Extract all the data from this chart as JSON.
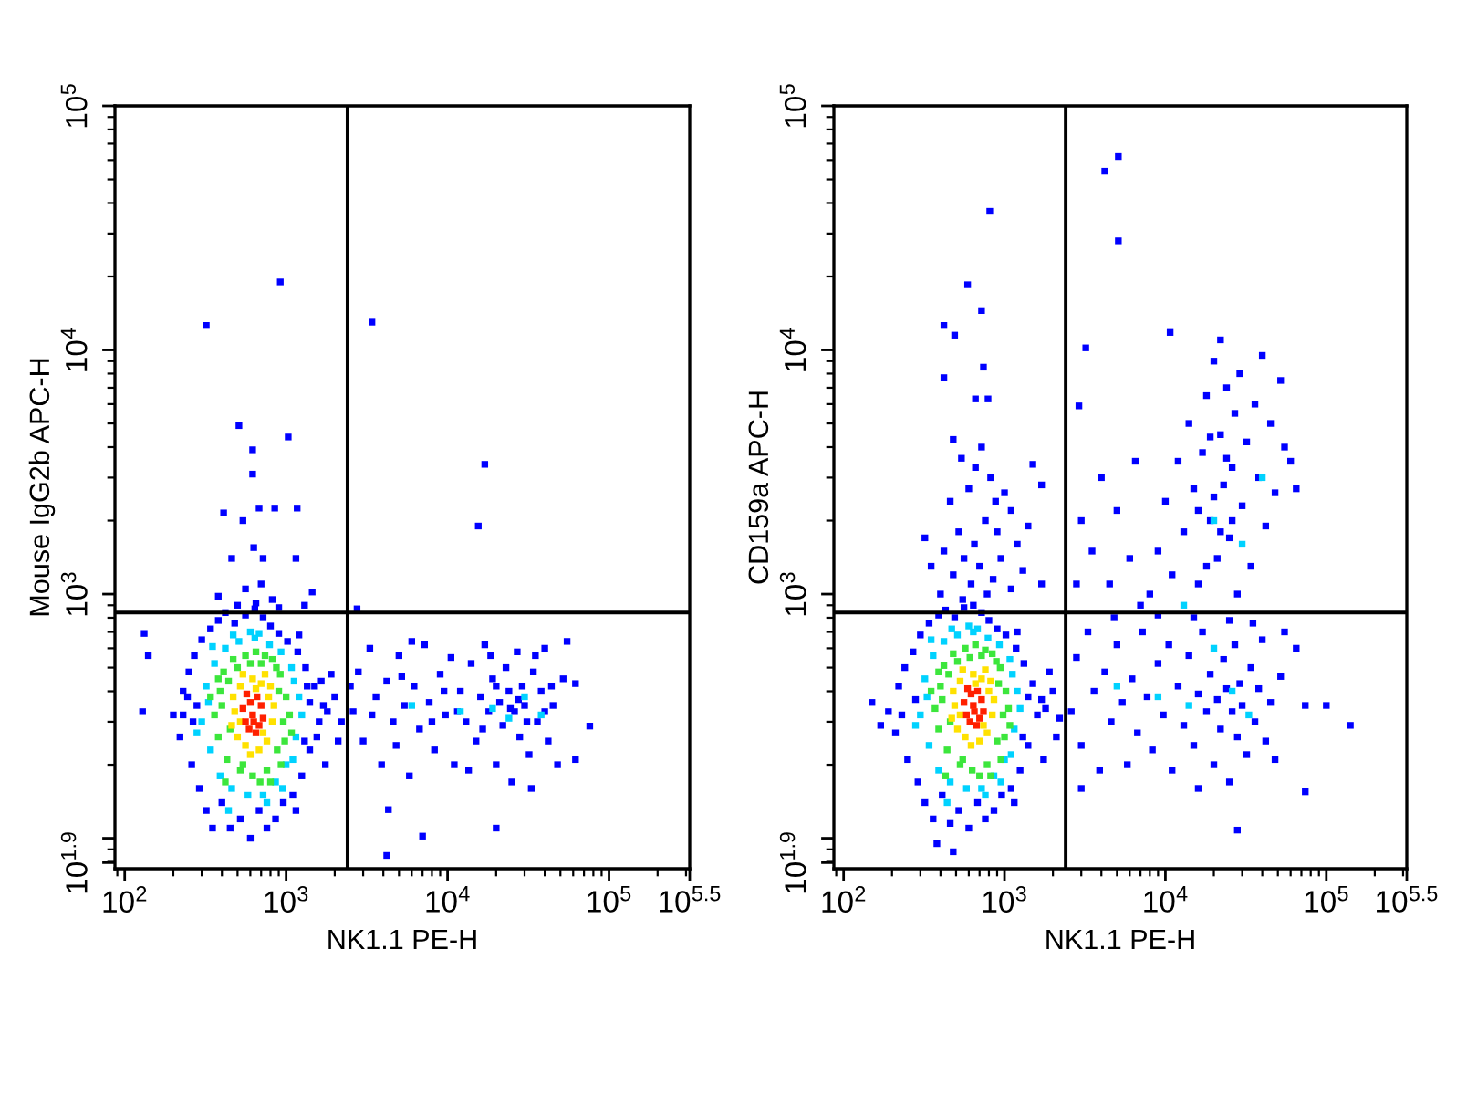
{
  "chart_data": [
    {
      "type": "scatter",
      "xlabel": "NK1.1 PE-H",
      "ylabel": "Mouse IgG2b APC-H",
      "log": "xy",
      "marker": "square",
      "xlim": [
        87,
        316228
      ],
      "ylim": [
        75,
        100000
      ],
      "xticks": [
        {
          "value": 100,
          "label": "10$^{2}$"
        },
        {
          "value": 1000,
          "label": "10$^{3}$"
        },
        {
          "value": 10000,
          "label": "10$^{4}$"
        },
        {
          "value": 100000,
          "label": "10$^{5}$"
        },
        {
          "value": 316228,
          "label": "10$^{5.5}$"
        }
      ],
      "yticks": [
        {
          "value": 79.4,
          "label": "10$^{1.9}$"
        },
        {
          "value": 100,
          "label": null
        },
        {
          "value": 1000,
          "label": "10$^{3}$"
        },
        {
          "value": 10000,
          "label": "10$^{4}$"
        },
        {
          "value": 100000,
          "label": "10$^{5}$"
        }
      ],
      "ref_lines": [
        {
          "axis": "x",
          "value": 2400,
          "color": "#000000"
        },
        {
          "axis": "y",
          "value": 840,
          "color": "#000000"
        }
      ],
      "series": [
        {
          "color": "#0000ff",
          "x": [
            200,
            220,
            230,
            250,
            260,
            270,
            280,
            290,
            300,
            320,
            340,
            350,
            380,
            400,
            420,
            450,
            480,
            520,
            560,
            600,
            640,
            680,
            720,
            760,
            800,
            860,
            900,
            960,
            1020,
            1100,
            1180,
            1250,
            1320,
            1400,
            1500,
            1600,
            1700,
            1400,
            1300,
            1200,
            1150,
            230,
            245,
            265,
            1350,
            1550,
            1650,
            1800,
            2000,
            2200,
            1900,
            2100,
            1750,
            129,
            132,
            140,
            920,
            320,
            3400,
            17000,
            15500,
            510,
            1030,
            620,
            620,
            680,
            850,
            1170,
            410,
            540,
            630,
            460,
            720,
            1150,
            1450,
            560,
            700,
            820,
            380,
            2750,
            500,
            650,
            900,
            1300,
            4300,
            7000,
            4200,
            20000,
            76000,
            62000,
            62000
          ],
          "values": [
            320,
            260,
            400,
            480,
            200,
            560,
            350,
            160,
            650,
            130,
            720,
            110,
            780,
            140,
            840,
            110,
            760,
            120,
            820,
            100,
            870,
            130,
            800,
            110,
            740,
            120,
            690,
            140,
            640,
            150,
            580,
            180,
            500,
            230,
            420,
            300,
            350,
            360,
            250,
            680,
            130,
            320,
            380,
            300,
            420,
            260,
            440,
            330,
            380,
            300,
            470,
            250,
            200,
            330,
            690,
            560,
            19000,
            12600,
            13000,
            3400,
            1900,
            4900,
            4400,
            3900,
            3100,
            2250,
            2250,
            2250,
            2150,
            2000,
            1550,
            1400,
            1400,
            1400,
            1020,
            1050,
            1100,
            950,
            980,
            870,
            900,
            920,
            880,
            900,
            131,
            102,
            85,
            110,
            288,
            430,
            210
          ]
        },
        {
          "color": "#0000ff",
          "x": [
            2600,
            2800,
            3000,
            3300,
            3600,
            3900,
            4200,
            4600,
            5000,
            5400,
            5800,
            6200,
            6700,
            7200,
            7700,
            8300,
            9000,
            9700,
            10500,
            11000,
            12000,
            13000,
            14000,
            15000,
            16000,
            17000,
            18000,
            19000,
            20000,
            21000,
            22000,
            23000,
            24000,
            25000,
            26000,
            27000,
            28000,
            29000,
            30000,
            32000,
            34000,
            36000,
            38000,
            40000,
            42000,
            45000,
            48000,
            52000,
            55000,
            3400,
            4800,
            6000,
            8000,
            11500,
            16500,
            20000,
            24500,
            31000,
            35000,
            44000,
            2500,
            5200,
            9500,
            13500,
            18500,
            27500,
            33000,
            40000
          ],
          "values": [
            330,
            480,
            250,
            600,
            380,
            200,
            440,
            300,
            560,
            350,
            180,
            420,
            280,
            620,
            360,
            230,
            470,
            320,
            550,
            200,
            400,
            300,
            520,
            250,
            380,
            620,
            330,
            450,
            200,
            360,
            290,
            500,
            400,
            170,
            330,
            580,
            260,
            420,
            350,
            220,
            480,
            300,
            400,
            600,
            250,
            350,
            200,
            450,
            640,
            320,
            240,
            640,
            300,
            330,
            280,
            420,
            340,
            300,
            560,
            420,
            420,
            460,
            400,
            190,
            560,
            370,
            160,
            330
          ]
        },
        {
          "color": "#00d2ff",
          "x": [
            300,
            320,
            340,
            360,
            390,
            420,
            460,
            510,
            580,
            640,
            720,
            790,
            860,
            930,
            1000,
            1080,
            1150,
            1200,
            1250,
            1120,
            330,
            350,
            440,
            600,
            760,
            950,
            1100,
            680,
            470,
            280,
            6000,
            12000,
            19000,
            24000,
            30000,
            38000
          ],
          "values": [
            300,
            420,
            230,
            520,
            180,
            600,
            160,
            640,
            150,
            660,
            150,
            620,
            170,
            580,
            200,
            500,
            260,
            380,
            320,
            440,
            360,
            610,
            130,
            700,
            140,
            160,
            210,
            690,
            680,
            270,
            350,
            330,
            340,
            310,
            380,
            320
          ]
        },
        {
          "color": "#3ce63c",
          "x": [
            360,
            380,
            390,
            410,
            430,
            470,
            520,
            560,
            620,
            650,
            700,
            760,
            820,
            880,
            920,
            960,
            1000,
            1050,
            900,
            400,
            440,
            450,
            980,
            600,
            540,
            740,
            870,
            930,
            380,
            420,
            1080,
            690,
            500,
            340,
            800
          ],
          "values": [
            320,
            260,
            400,
            480,
            210,
            540,
            190,
            560,
            180,
            580,
            520,
            190,
            540,
            230,
            470,
            300,
            380,
            320,
            400,
            350,
            440,
            280,
            250,
            520,
            200,
            560,
            500,
            200,
            450,
            170,
            270,
            170,
            500,
            380,
            170
          ]
        },
        {
          "color": "#ffe100",
          "x": [
            480,
            500,
            520,
            560,
            620,
            700,
            780,
            820,
            760,
            680,
            600,
            470,
            840,
            740,
            540,
            460,
            800,
            650,
            520,
            720
          ],
          "values": [
            330,
            260,
            420,
            240,
            450,
            430,
            380,
            300,
            250,
            230,
            220,
            380,
            350,
            470,
            470,
            290,
            420,
            410,
            300,
            270
          ]
        },
        {
          "color": "#ff2000",
          "x": [
            560,
            620,
            680,
            600,
            700,
            650,
            540,
            720,
            590,
            660,
            630,
            570
          ],
          "values": [
            300,
            320,
            290,
            360,
            350,
            270,
            340,
            310,
            280,
            380,
            300,
            390
          ]
        }
      ]
    },
    {
      "type": "scatter",
      "xlabel": "NK1.1 PE-H",
      "ylabel": "CD159a APC-H",
      "log": "xy",
      "marker": "square",
      "xlim": [
        87,
        316228
      ],
      "ylim": [
        75,
        100000
      ],
      "xticks": [
        {
          "value": 100,
          "label": "10$^{2}$"
        },
        {
          "value": 1000,
          "label": "10$^{3}$"
        },
        {
          "value": 10000,
          "label": "10$^{4}$"
        },
        {
          "value": 100000,
          "label": "10$^{5}$"
        },
        {
          "value": 316228,
          "label": "10$^{5.5}$"
        }
      ],
      "yticks": [
        {
          "value": 79.4,
          "label": "10$^{1.9}$"
        },
        {
          "value": 100,
          "label": null
        },
        {
          "value": 1000,
          "label": "10$^{3}$"
        },
        {
          "value": 10000,
          "label": "10$^{4}$"
        },
        {
          "value": 100000,
          "label": "10$^{5}$"
        }
      ],
      "ref_lines": [
        {
          "axis": "x",
          "value": 2400,
          "color": "#000000"
        },
        {
          "axis": "y",
          "value": 840,
          "color": "#000000"
        }
      ],
      "series": [
        {
          "color": "#0000ff",
          "x": [
            190,
            210,
            220,
            240,
            250,
            270,
            280,
            290,
            300,
            320,
            340,
            360,
            390,
            410,
            430,
            460,
            490,
            520,
            560,
            600,
            640,
            680,
            720,
            760,
            800,
            860,
            900,
            960,
            1020,
            1100,
            1180,
            1250,
            1320,
            1400,
            1500,
            1600,
            1700,
            1400,
            1300,
            1200,
            1150,
            150,
            170,
            230,
            1800,
            2000,
            2200,
            1900,
            2100,
            1750,
            380,
            480,
            400,
            480,
            550,
            620,
            700,
            780,
            850,
            950,
            1100,
            1300,
            420,
            520,
            650,
            760,
            900,
            1100,
            1400,
            460,
            600,
            820,
            1000,
            1500,
            540,
            720,
            480,
            350,
            320,
            1200,
            880,
            1700,
            660,
            560,
            1700,
            810,
            590,
            720,
            420,
            490,
            420,
            740,
            660,
            790,
            4200,
            5100,
            5100,
            3200,
            10700,
            22000,
            2900
          ],
          "values": [
            330,
            270,
            420,
            500,
            210,
            580,
            370,
            170,
            680,
            140,
            760,
            120,
            820,
            150,
            860,
            115,
            800,
            130,
            880,
            110,
            900,
            140,
            840,
            120,
            780,
            130,
            720,
            150,
            680,
            160,
            600,
            190,
            520,
            240,
            430,
            320,
            370,
            380,
            260,
            700,
            140,
            360,
            290,
            320,
            340,
            400,
            310,
            480,
            260,
            210,
            95,
            88,
            1000,
            1200,
            950,
            1100,
            1300,
            1000,
            1150,
            1400,
            1050,
            1250,
            1500,
            1800,
            1600,
            2000,
            1800,
            2200,
            1900,
            2400,
            2700,
            3000,
            2600,
            3400,
            3600,
            4000,
            4300,
            1300,
            1700,
            1600,
            2400,
            2800,
            3300,
            1400,
            1100,
            37000,
            18500,
            14500,
            12600,
            11500,
            7700,
            8500,
            6300,
            6300,
            54000,
            62000,
            28000,
            10200,
            11800,
            11000,
            5900
          ]
        },
        {
          "color": "#0000ff",
          "x": [
            8000,
            9000,
            10000,
            11000,
            12000,
            13000,
            14000,
            15000,
            16000,
            17000,
            18000,
            19000,
            20000,
            21000,
            22000,
            23000,
            24000,
            25000,
            26000,
            27000,
            28000,
            29000,
            30000,
            32000,
            34000,
            36000,
            38000,
            40000,
            42000,
            45000,
            48000,
            52000,
            55000,
            60000,
            18000,
            20000,
            22000,
            24000,
            16000,
            26000,
            19000,
            6000,
            5000,
            4500,
            6500,
            3500,
            7000,
            3000,
            4000,
            2800,
            65000,
            2600,
            2800,
            3000,
            3300,
            3600,
            3900,
            4200,
            4600,
            5000,
            5400,
            5800,
            6200,
            6700,
            7200,
            7700,
            8300,
            9000,
            9700,
            10500,
            11000,
            12000,
            13000,
            14000,
            15000,
            16000,
            17000,
            18000,
            19000,
            20000,
            21000,
            22000,
            23000,
            24000,
            25000,
            26000,
            27000,
            28000,
            29000,
            30000,
            32000,
            34000,
            36000,
            38000,
            40000,
            42000,
            45000,
            48000,
            52000,
            55000,
            4800,
            9000,
            15000,
            25000,
            35000,
            65000,
            100000,
            141000,
            74000,
            74000,
            28000,
            16000,
            3000
          ],
          "values": [
            1000,
            1500,
            2400,
            1200,
            3500,
            1800,
            5000,
            2700,
            1100,
            3800,
            6500,
            2000,
            9000,
            1400,
            4500,
            2800,
            7000,
            1700,
            3300,
            5500,
            1000,
            8000,
            2300,
            4200,
            1300,
            6000,
            3000,
            9500,
            1900,
            5000,
            2600,
            7500,
            4000,
            3500,
            1300,
            2500,
            1800,
            3600,
            2200,
            2000,
            4400,
            1400,
            2200,
            1100,
            3500,
            1500,
            900,
            2000,
            3000,
            1100,
            2700,
            330,
            550,
            240,
            700,
            400,
            190,
            480,
            300,
            620,
            360,
            200,
            450,
            270,
            700,
            380,
            230,
            520,
            320,
            620,
            190,
            420,
            290,
            560,
            240,
            390,
            700,
            330,
            470,
            200,
            370,
            280,
            540,
            410,
            170,
            330,
            620,
            260,
            430,
            350,
            220,
            500,
            300,
            410,
            650,
            250,
            360,
            210,
            460,
            700,
            800,
            820,
            800,
            780,
            760,
            600,
            350,
            290,
            350,
            155,
            108,
            160,
            160
          ]
        },
        {
          "color": "#00d2ff",
          "x": [
            300,
            320,
            340,
            360,
            390,
            420,
            460,
            510,
            580,
            640,
            720,
            790,
            860,
            930,
            1000,
            1080,
            1150,
            1200,
            1250,
            1120,
            330,
            350,
            440,
            600,
            760,
            950,
            1100,
            680,
            470,
            280,
            5000,
            9000,
            14000,
            20000,
            26000,
            33000,
            20000,
            30000,
            40000,
            13000
          ],
          "values": [
            320,
            450,
            240,
            560,
            190,
            640,
            170,
            680,
            160,
            700,
            160,
            660,
            180,
            620,
            210,
            540,
            280,
            400,
            340,
            470,
            380,
            650,
            140,
            740,
            150,
            170,
            220,
            720,
            720,
            290,
            420,
            380,
            350,
            600,
            400,
            320,
            2000,
            1600,
            3000,
            900
          ]
        },
        {
          "color": "#3ce63c",
          "x": [
            370,
            390,
            400,
            420,
            440,
            480,
            530,
            570,
            630,
            660,
            720,
            780,
            840,
            900,
            940,
            980,
            1020,
            1060,
            920,
            410,
            450,
            460,
            1000,
            610,
            550,
            760,
            890,
            950,
            390,
            430,
            1080,
            700,
            510,
            350,
            820
          ],
          "values": [
            340,
            280,
            420,
            510,
            230,
            570,
            200,
            600,
            190,
            620,
            560,
            200,
            570,
            250,
            500,
            320,
            400,
            340,
            430,
            370,
            470,
            300,
            260,
            550,
            210,
            590,
            530,
            210,
            480,
            180,
            290,
            180,
            530,
            400,
            180
          ]
        },
        {
          "color": "#ffe100",
          "x": [
            490,
            510,
            530,
            570,
            640,
            720,
            800,
            840,
            780,
            700,
            620,
            480,
            860,
            760,
            550,
            470,
            820,
            660,
            530,
            740
          ],
          "values": [
            350,
            280,
            440,
            260,
            470,
            450,
            400,
            320,
            270,
            250,
            240,
            400,
            370,
            490,
            490,
            310,
            440,
            430,
            320,
            290
          ]
        },
        {
          "color": "#ff2000",
          "x": [
            580,
            640,
            700,
            620,
            720,
            670,
            560,
            740,
            610,
            680,
            650,
            590
          ],
          "values": [
            320,
            350,
            310,
            390,
            370,
            290,
            360,
            330,
            300,
            400,
            330,
            410
          ]
        }
      ]
    }
  ]
}
